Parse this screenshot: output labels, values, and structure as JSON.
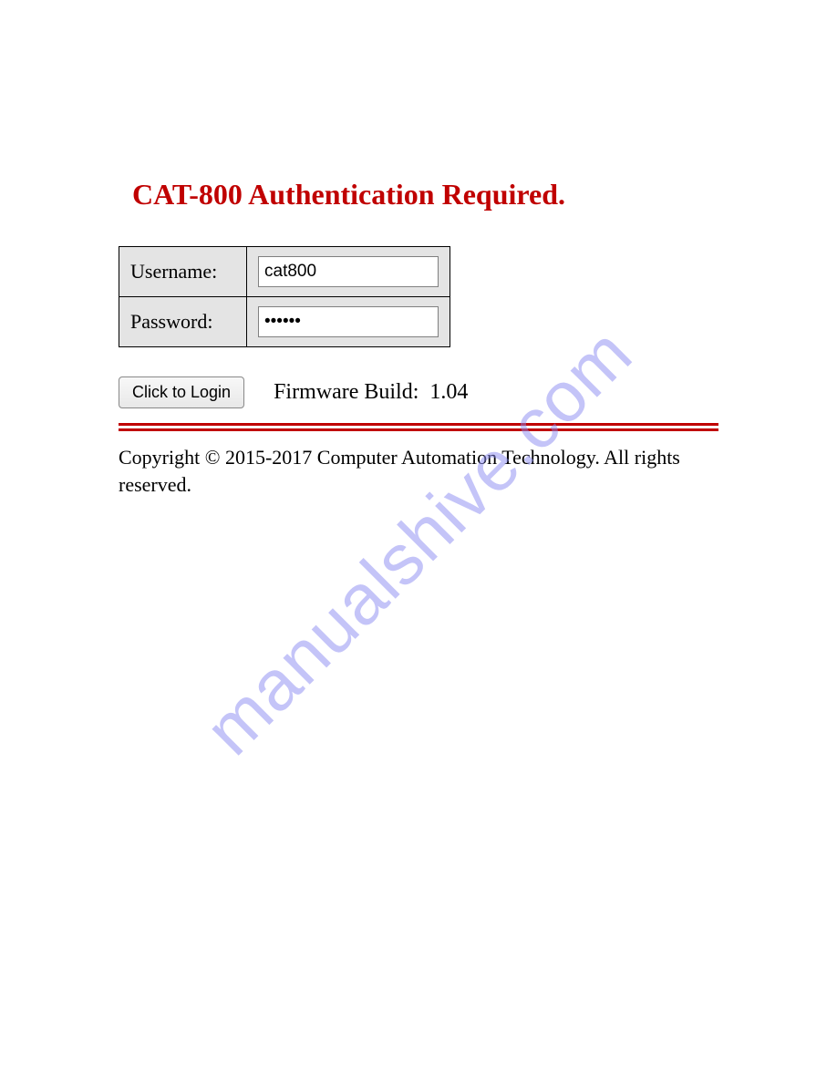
{
  "page": {
    "title": "CAT-800 Authentication Required.",
    "title_color": "#c00000",
    "background_color": "#ffffff"
  },
  "form": {
    "username_label": "Username:",
    "username_value": "cat800",
    "password_label": "Password:",
    "password_value": "••••••",
    "table_bg_color": "#e4e4e4",
    "border_color": "#000000"
  },
  "actions": {
    "login_button_label": "Click to Login",
    "firmware_label": "Firmware Build:",
    "firmware_version": "1.04"
  },
  "divider": {
    "color": "#c00000",
    "count": 2
  },
  "footer": {
    "copyright": "Copyright © 2015-2017 Computer Automation Technology. All rights reserved."
  },
  "watermark": {
    "text": "manualshive.com",
    "color": "#8a8af2"
  }
}
